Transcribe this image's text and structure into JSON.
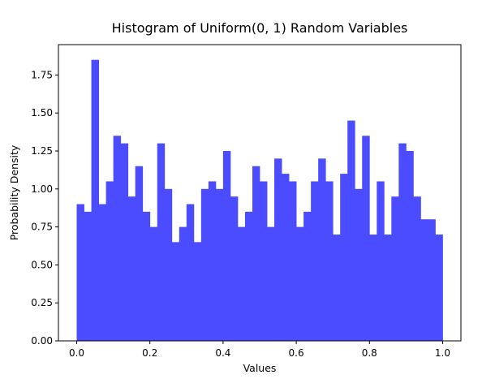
{
  "chart_data": {
    "type": "bar",
    "title": "Histogram of Uniform(0, 1) Random Variables",
    "xlabel": "Values",
    "ylabel": "Probability Density",
    "xlim": [
      -0.05,
      1.05
    ],
    "ylim": [
      0,
      1.95
    ],
    "xticks": [
      0.0,
      0.2,
      0.4,
      0.6,
      0.8,
      1.0
    ],
    "xtick_labels": [
      "0.0",
      "0.2",
      "0.4",
      "0.6",
      "0.8",
      "1.0"
    ],
    "yticks": [
      0.0,
      0.25,
      0.5,
      0.75,
      1.0,
      1.25,
      1.5,
      1.75
    ],
    "ytick_labels": [
      "0.00",
      "0.25",
      "0.50",
      "0.75",
      "1.00",
      "1.25",
      "1.50",
      "1.75"
    ],
    "bin_start": 0.0,
    "bin_width": 0.02,
    "bar_color": "#4b4bff",
    "grid": false,
    "legend": false,
    "values": [
      0.9,
      0.85,
      1.85,
      0.9,
      1.05,
      1.35,
      1.3,
      0.95,
      1.15,
      0.85,
      0.75,
      1.3,
      1.0,
      0.65,
      0.75,
      0.9,
      0.65,
      1.0,
      1.05,
      1.0,
      1.25,
      0.95,
      0.75,
      0.85,
      1.15,
      1.05,
      0.75,
      1.2,
      1.1,
      1.05,
      0.75,
      0.85,
      1.05,
      1.2,
      1.05,
      0.7,
      1.1,
      1.45,
      1.0,
      1.35,
      0.7,
      1.05,
      0.7,
      0.95,
      1.3,
      1.25,
      0.95,
      0.8,
      0.8,
      0.7
    ]
  }
}
